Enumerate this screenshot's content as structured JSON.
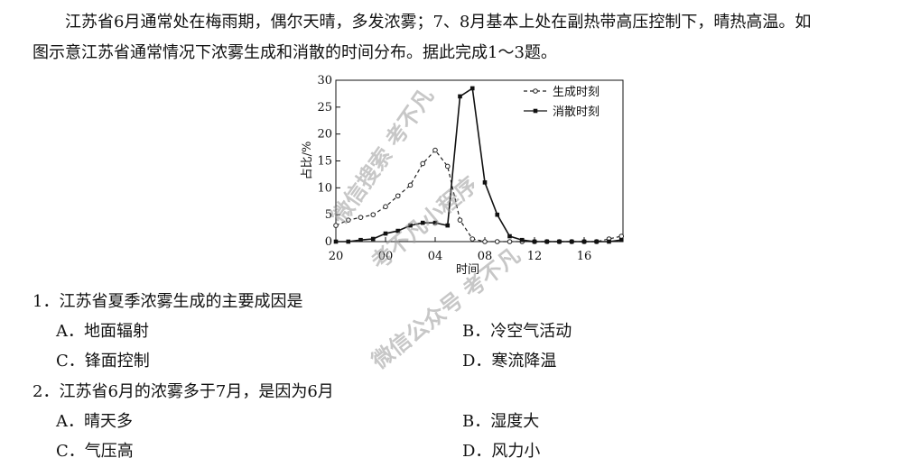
{
  "passage": [
    "江苏省6月通常处在梅雨期，偶尔天晴，多发浓雾；7、8月基本上处在副热带高压控制下，晴热高温。如",
    "图示意江苏省通常情况下浓雾生成和消散的时间分布。据此完成1～3题。"
  ],
  "chart_data": {
    "type": "line",
    "ylabel": "占比/%",
    "xlabel": "时间",
    "categories": [
      "20",
      null,
      null,
      null,
      "00",
      null,
      null,
      null,
      "04",
      null,
      null,
      null,
      "08",
      null,
      null,
      null,
      "12",
      null,
      null,
      null,
      "16",
      null,
      null,
      null
    ],
    "ylim": [
      0,
      30
    ],
    "yticks": [
      0,
      5,
      10,
      15,
      20,
      25,
      30
    ],
    "legend": "upper right",
    "series": [
      {
        "name": "生成时刻",
        "color": "#222",
        "marker": "open-circle",
        "dash": true,
        "values": [
          3,
          4,
          4.5,
          5,
          6.5,
          8.5,
          10.5,
          14.5,
          17,
          14,
          4,
          0.5,
          0,
          0,
          0,
          0,
          0,
          0,
          0,
          0,
          0,
          0,
          0.5,
          1
        ]
      },
      {
        "name": "消散时刻",
        "color": "#111",
        "marker": "filled-square",
        "dash": false,
        "values": [
          0,
          0,
          0.3,
          0.5,
          1.5,
          2,
          3,
          3.5,
          3.5,
          3,
          27,
          28.5,
          11,
          5,
          1,
          0.3,
          0,
          0,
          0,
          0,
          0,
          0,
          0,
          0.3
        ]
      }
    ]
  },
  "questions": [
    {
      "stem": "1．江苏省夏季浓雾生成的主要成因是",
      "options": [
        "A．地面辐射",
        "B．冷空气活动",
        "C．锋面控制",
        "D．寒流降温"
      ]
    },
    {
      "stem": "2．江苏省6月的浓雾多于7月，是因为6月",
      "options": [
        "A．晴天多",
        "B．湿度大",
        "C．气压高",
        "D．风力小"
      ]
    }
  ],
  "watermarks": [
    "微信搜索 考不凡",
    "考不凡小程序",
    "微信公众号 考不凡"
  ]
}
